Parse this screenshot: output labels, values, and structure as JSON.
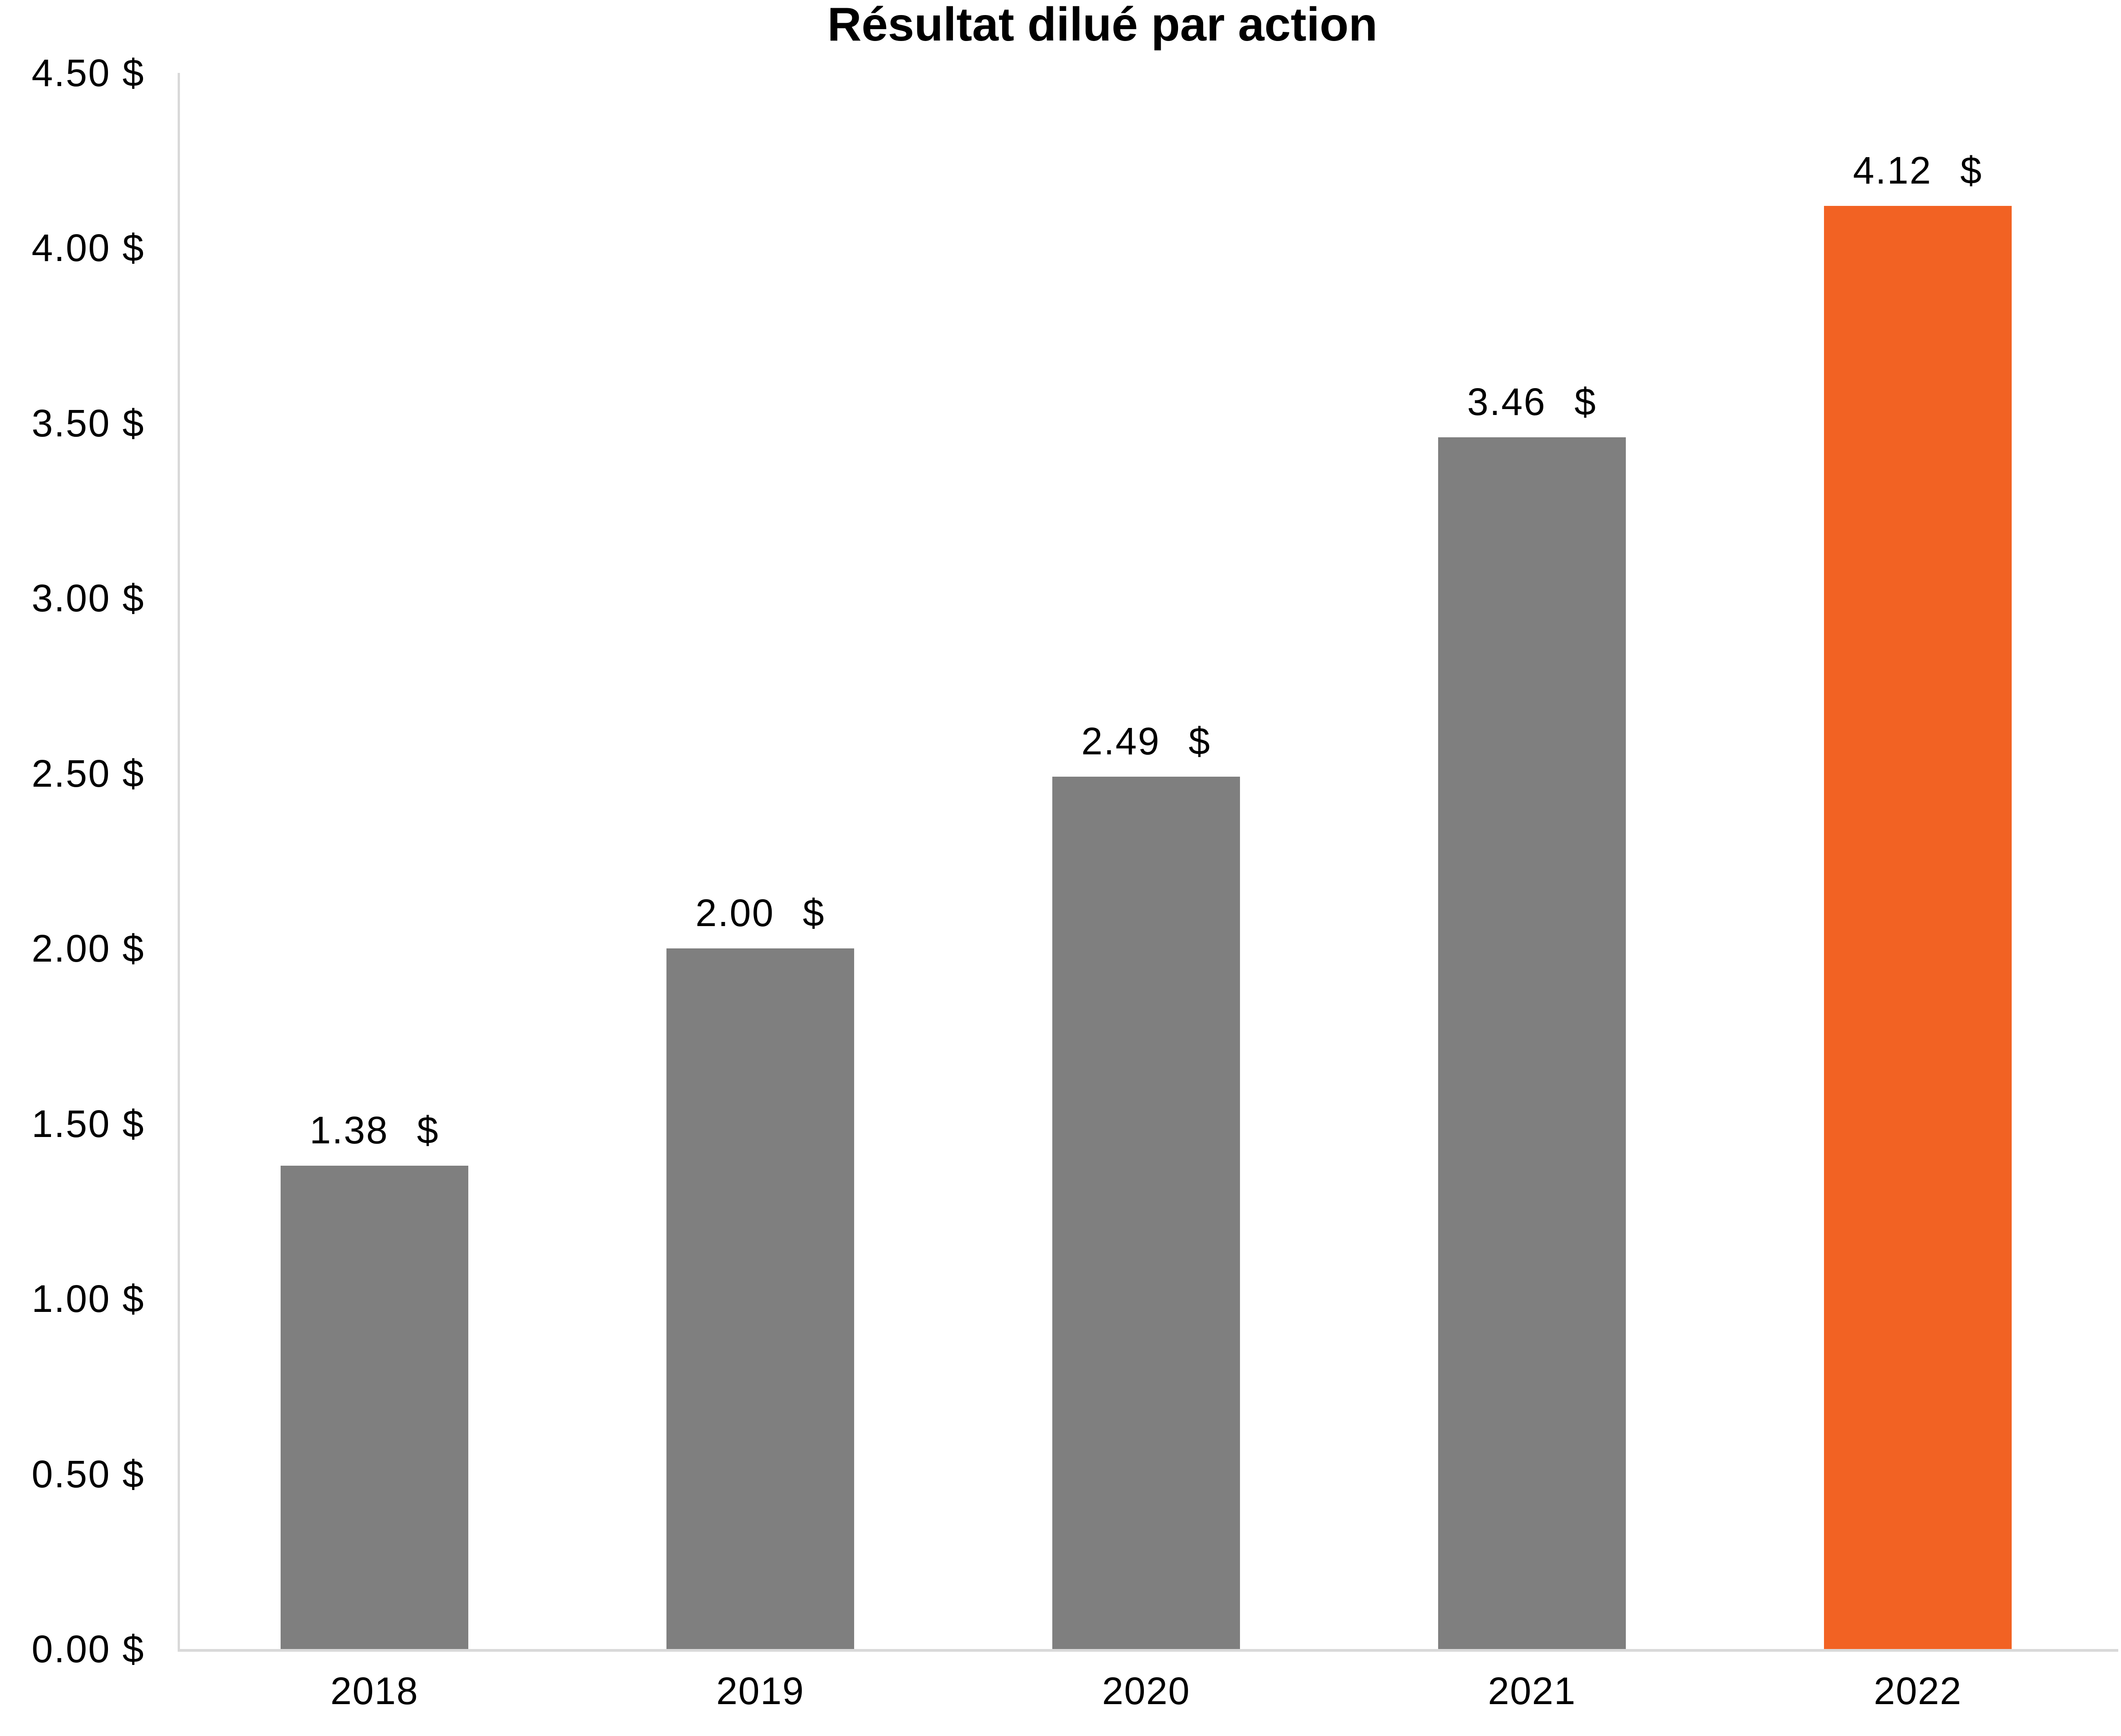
{
  "page": {
    "background": "#FFFFFF"
  },
  "chart_data": {
    "type": "bar",
    "title": "Résultat dilué par action",
    "categories": [
      "2018",
      "2019",
      "2020",
      "2021",
      "2022"
    ],
    "values": [
      1.38,
      2.0,
      2.49,
      3.46,
      4.12
    ],
    "value_labels": [
      "1.38",
      "2.00",
      "2.49",
      "3.46",
      "4.12"
    ],
    "currency_suffix": "$",
    "xlabel": "",
    "ylabel": "",
    "ylim": [
      0,
      4.5
    ],
    "ytick_step": 0.5,
    "ytick_labels": [
      "0.00 $",
      "0.50 $",
      "1.00 $",
      "1.50 $",
      "2.00 $",
      "2.50 $",
      "3.00 $",
      "3.50 $",
      "4.00 $",
      "4.50 $"
    ],
    "ytick_values": [
      0.0,
      0.5,
      1.0,
      1.5,
      2.0,
      2.5,
      3.0,
      3.5,
      4.0,
      4.5
    ],
    "grid": "off",
    "legend": "none",
    "bar_colors": [
      "#7F7F7F",
      "#7F7F7F",
      "#7F7F7F",
      "#7F7F7F",
      "#F26223"
    ],
    "colors": {
      "bar_default": "#7F7F7F",
      "bar_highlight": "#F26223",
      "axis_line": "#D9D9D9",
      "text": "#000000"
    }
  }
}
